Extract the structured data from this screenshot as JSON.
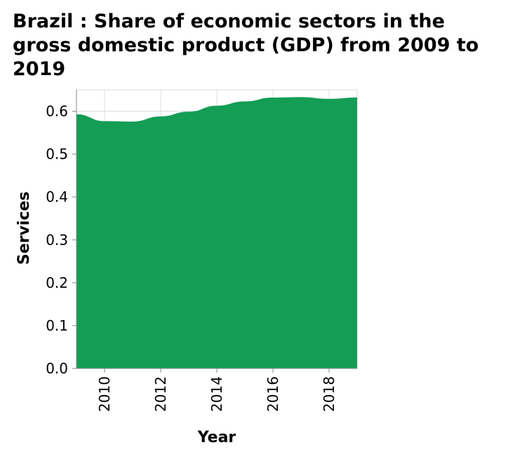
{
  "chart_data": {
    "type": "area",
    "title": "Brazil : Share of economic sectors in the gross domestic product (GDP) from 2009 to 2019",
    "xlabel": "Year",
    "ylabel": "Services",
    "x": [
      2009,
      2010,
      2011,
      2012,
      2013,
      2014,
      2015,
      2016,
      2017,
      2018,
      2019
    ],
    "values": [
      0.593,
      0.577,
      0.576,
      0.588,
      0.599,
      0.613,
      0.623,
      0.632,
      0.633,
      0.629,
      0.632
    ],
    "xlim": [
      2009,
      2019
    ],
    "ylim": [
      0,
      0.65
    ],
    "x_ticks": [
      2010,
      2012,
      2014,
      2016,
      2018
    ],
    "y_ticks": [
      0.0,
      0.1,
      0.2,
      0.3,
      0.4,
      0.5,
      0.6
    ],
    "y_tick_labels": [
      "0.0",
      "0.1",
      "0.2",
      "0.3",
      "0.4",
      "0.5",
      "0.6"
    ],
    "grid": true,
    "color": "#139d55"
  }
}
